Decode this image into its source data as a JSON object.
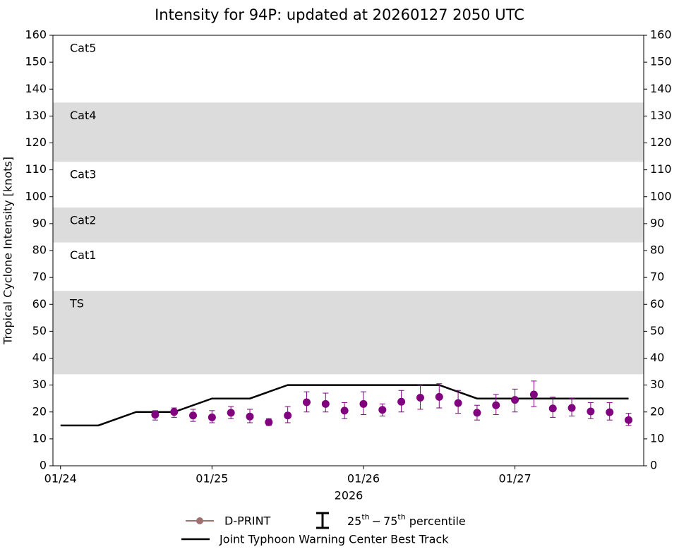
{
  "chart_data": {
    "type": "line",
    "title": "Intensity for 94P: updated at 20260127 2050 UTC",
    "ylabel": "Tropical Cyclone Intensity [knots]",
    "xlabel": "2026",
    "xlim": [
      -0.05,
      3.85
    ],
    "xticks": [
      {
        "value": 0,
        "label": "01/24"
      },
      {
        "value": 1,
        "label": "01/25"
      },
      {
        "value": 2,
        "label": "01/26"
      },
      {
        "value": 3,
        "label": "01/27"
      }
    ],
    "ylim": [
      0,
      160
    ],
    "yticks": [
      0,
      10,
      20,
      30,
      40,
      50,
      60,
      70,
      80,
      90,
      100,
      110,
      120,
      130,
      140,
      150,
      160
    ],
    "bands": [
      {
        "label": "TS",
        "range": [
          34,
          65
        ],
        "shaded": true
      },
      {
        "label": "Cat1",
        "range": [
          65,
          83
        ],
        "shaded": false
      },
      {
        "label": "Cat2",
        "range": [
          83,
          96
        ],
        "shaded": true
      },
      {
        "label": "Cat3",
        "range": [
          96,
          113
        ],
        "shaded": false
      },
      {
        "label": "Cat4",
        "range": [
          113,
          135
        ],
        "shaded": true
      },
      {
        "label": "Cat5",
        "range": [
          135,
          160
        ],
        "shaded": false
      }
    ],
    "band_color": "#dcdcdc",
    "series": [
      {
        "name": "Joint Typhoon Warning Center Best Track",
        "color": "#000000",
        "x": [
          0,
          0.25,
          0.5,
          0.75,
          1,
          1.25,
          1.5,
          1.75,
          2,
          2.25,
          2.5,
          2.75,
          3,
          3.25,
          3.5,
          3.75
        ],
        "values": [
          15,
          15,
          20,
          20,
          25,
          25,
          30,
          30,
          30,
          30,
          30,
          25,
          25,
          25,
          25,
          25
        ]
      },
      {
        "name": "D-PRINT",
        "color": "#800080",
        "legend_color": "#a0706e",
        "x": [
          0.625,
          0.75,
          0.875,
          1,
          1.125,
          1.25,
          1.375,
          1.5,
          1.625,
          1.75,
          1.875,
          2,
          2.125,
          2.25,
          2.375,
          2.5,
          2.625,
          2.75,
          2.875,
          3,
          3.125,
          3.25,
          3.375,
          3.5,
          3.625,
          3.75
        ],
        "values": [
          19,
          20,
          18.7,
          18,
          19.7,
          18.3,
          16.2,
          18.7,
          23.6,
          23,
          20.5,
          23,
          20.8,
          23.8,
          25.3,
          25.6,
          23.3,
          19.7,
          22.5,
          24.5,
          26.5,
          21.3,
          21.5,
          20.2,
          19.9,
          17
        ],
        "lower": [
          17,
          18,
          16.5,
          16,
          17.5,
          16,
          15,
          16,
          20,
          20,
          17.5,
          19,
          18.5,
          20,
          21,
          21.5,
          19.5,
          17,
          19,
          20,
          22,
          18,
          18.5,
          17.5,
          17,
          15
        ],
        "upper": [
          20.5,
          21.5,
          21,
          20.5,
          22,
          21,
          17.5,
          22,
          27.5,
          27,
          23.5,
          27.5,
          23,
          28,
          30,
          30.5,
          28,
          22.5,
          26.5,
          28.5,
          31.5,
          25.5,
          25,
          23.5,
          23.5,
          19.5
        ]
      }
    ],
    "percentile_legend": {
      "lo": "25",
      "lo_sup": "th",
      "dash": "−",
      "hi": "75",
      "hi_sup": "th",
      "text": "percentile"
    }
  }
}
